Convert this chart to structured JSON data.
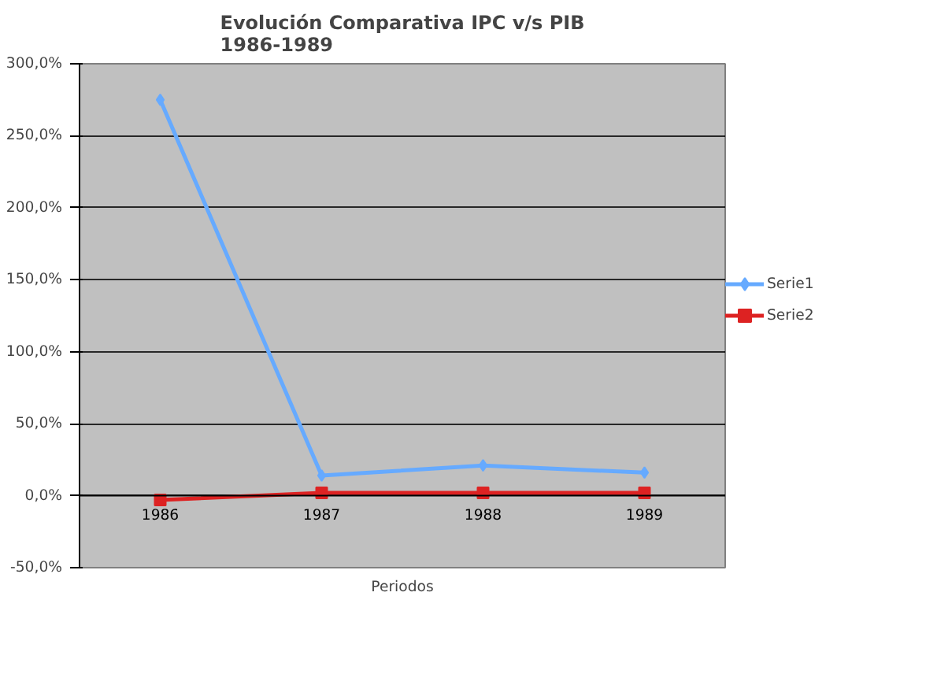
{
  "chart_data": {
    "type": "line",
    "title": "Evolución Comparativa IPC v/s PIB\n1986-1989",
    "xlabel": "Periodos",
    "categories": [
      "1986",
      "1987",
      "1988",
      "1989"
    ],
    "series": [
      {
        "name": "Serie1",
        "color": "#66aaff",
        "marker": "diamond",
        "values": [
          275,
          14,
          21,
          16
        ]
      },
      {
        "name": "Serie2",
        "color": "#dd2222",
        "marker": "square",
        "values": [
          -3,
          2,
          2,
          2
        ]
      }
    ],
    "ylim": [
      -50,
      300
    ],
    "yticks": [
      {
        "value": -50,
        "label": "-50,0%"
      },
      {
        "value": 0,
        "label": "0,0%"
      },
      {
        "value": 50,
        "label": "50,0%"
      },
      {
        "value": 100,
        "label": "100,0%"
      },
      {
        "value": 150,
        "label": "150,0%"
      },
      {
        "value": 200,
        "label": "200,0%"
      },
      {
        "value": 250,
        "label": "250,0%"
      },
      {
        "value": 300,
        "label": "300,0%"
      }
    ],
    "grid": "y",
    "legend": "right",
    "line_style": "solid"
  }
}
